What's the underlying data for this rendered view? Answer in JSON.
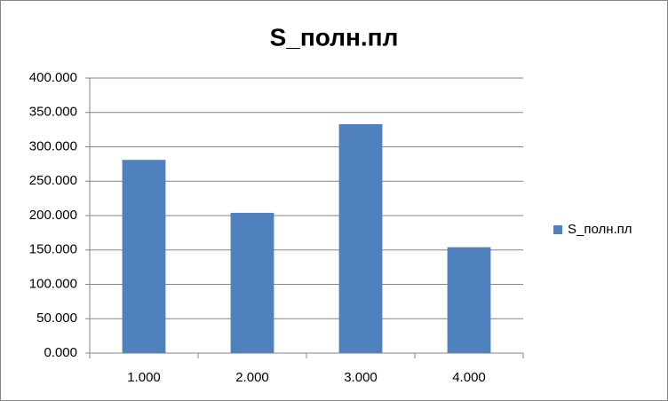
{
  "chart_data": {
    "type": "bar",
    "title": "S_полн.пл",
    "categories": [
      "1.000",
      "2.000",
      "3.000",
      "4.000"
    ],
    "series": [
      {
        "name": "S_полн.пл",
        "color": "#4f81bd",
        "values": [
          281,
          204,
          333,
          154
        ]
      }
    ],
    "ylim": [
      0,
      400
    ],
    "yticks": [
      {
        "value": 0,
        "label": "0.000"
      },
      {
        "value": 50,
        "label": "50.000"
      },
      {
        "value": 100,
        "label": "100.000"
      },
      {
        "value": 150,
        "label": "150.000"
      },
      {
        "value": 200,
        "label": "200.000"
      },
      {
        "value": 250,
        "label": "250.000"
      },
      {
        "value": 300,
        "label": "300.000"
      },
      {
        "value": 350,
        "label": "350.000"
      },
      {
        "value": 400,
        "label": "400.000"
      }
    ],
    "grid": true,
    "legend": "right"
  }
}
